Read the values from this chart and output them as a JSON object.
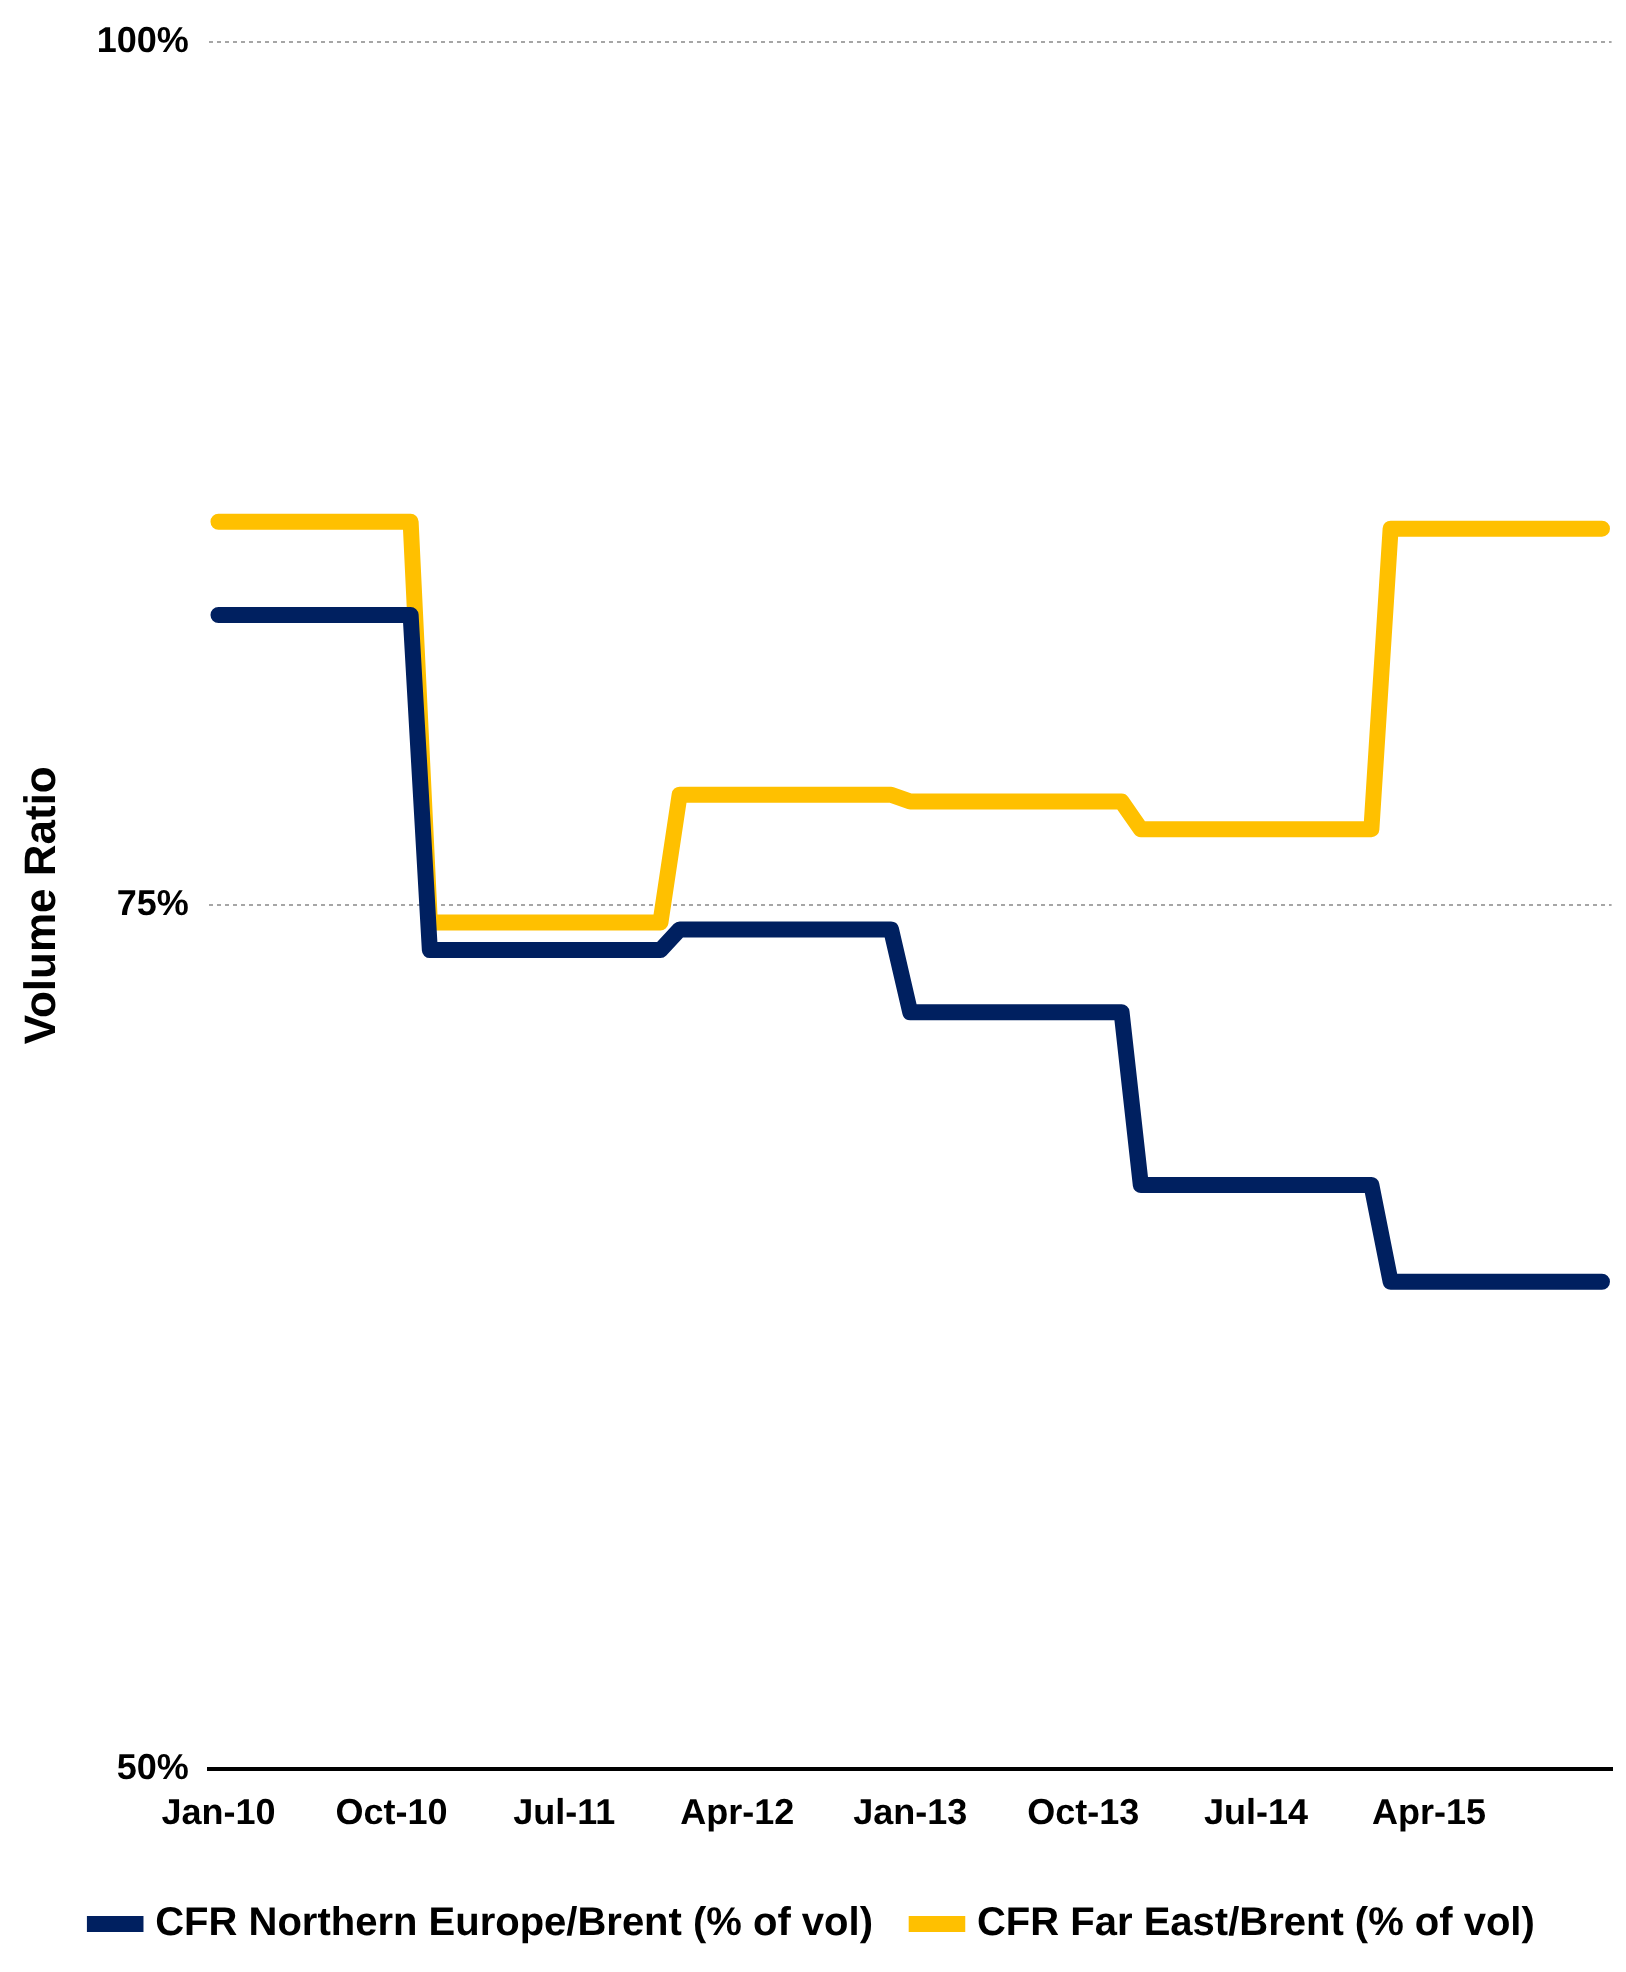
{
  "chart_data": {
    "type": "line",
    "ylabel": "Volume Ratio",
    "categories": [
      "Jan-10",
      null,
      null,
      null,
      null,
      null,
      null,
      null,
      null,
      "Oct-10",
      null,
      null,
      null,
      null,
      null,
      null,
      null,
      null,
      "Jul-11",
      null,
      null,
      null,
      null,
      null,
      null,
      null,
      null,
      "Apr-12",
      null,
      null,
      null,
      null,
      null,
      null,
      null,
      null,
      "Jan-13",
      null,
      null,
      null,
      null,
      null,
      null,
      null,
      null,
      "Oct-13",
      null,
      null,
      null,
      null,
      null,
      null,
      null,
      null,
      "Jul-14",
      null,
      null,
      null,
      null,
      null,
      null,
      null,
      null,
      "Apr-15",
      null,
      null,
      null,
      null,
      null,
      null,
      null,
      null,
      null
    ],
    "series": [
      {
        "name": "CFR Northern Europe/Brent (% of vol)",
        "color": "#002060",
        "values": [
          83.4,
          83.4,
          83.4,
          83.4,
          83.4,
          83.4,
          83.4,
          83.4,
          83.4,
          83.4,
          83.4,
          73.7,
          73.7,
          73.7,
          73.7,
          73.7,
          73.7,
          73.7,
          73.7,
          73.7,
          73.7,
          73.7,
          73.7,
          73.7,
          74.3,
          74.3,
          74.3,
          74.3,
          74.3,
          74.3,
          74.3,
          74.3,
          74.3,
          74.3,
          74.3,
          74.3,
          71.9,
          71.9,
          71.9,
          71.9,
          71.9,
          71.9,
          71.9,
          71.9,
          71.9,
          71.9,
          71.9,
          71.9,
          66.9,
          66.9,
          66.9,
          66.9,
          66.9,
          66.9,
          66.9,
          66.9,
          66.9,
          66.9,
          66.9,
          66.9,
          66.9,
          64.1,
          64.1,
          64.1,
          64.1,
          64.1,
          64.1,
          64.1,
          64.1,
          64.1,
          64.1,
          64.1,
          64.1
        ]
      },
      {
        "name": "CFR Far East/Brent (% of vol)",
        "color": "#ffc000",
        "values": [
          86.1,
          86.1,
          86.1,
          86.1,
          86.1,
          86.1,
          86.1,
          86.1,
          86.1,
          86.1,
          86.1,
          74.5,
          74.5,
          74.5,
          74.5,
          74.5,
          74.5,
          74.5,
          74.5,
          74.5,
          74.5,
          74.5,
          74.5,
          74.5,
          78.2,
          78.2,
          78.2,
          78.2,
          78.2,
          78.2,
          78.2,
          78.2,
          78.2,
          78.2,
          78.2,
          78.2,
          78.0,
          78.0,
          78.0,
          78.0,
          78.0,
          78.0,
          78.0,
          78.0,
          78.0,
          78.0,
          78.0,
          78.0,
          77.2,
          77.2,
          77.2,
          77.2,
          77.2,
          77.2,
          77.2,
          77.2,
          77.2,
          77.2,
          77.2,
          77.2,
          77.2,
          85.9,
          85.9,
          85.9,
          85.9,
          85.9,
          85.9,
          85.9,
          85.9,
          85.9,
          85.9,
          85.9,
          85.9
        ]
      }
    ],
    "ylim": [
      50,
      100
    ],
    "yticks": [
      {
        "value": 50,
        "label": "50%"
      },
      {
        "value": 75,
        "label": "75%"
      },
      {
        "value": 100,
        "label": "100%"
      }
    ],
    "grid": "y",
    "legend": "bottom",
    "marker": "none",
    "line_style": "solid"
  }
}
